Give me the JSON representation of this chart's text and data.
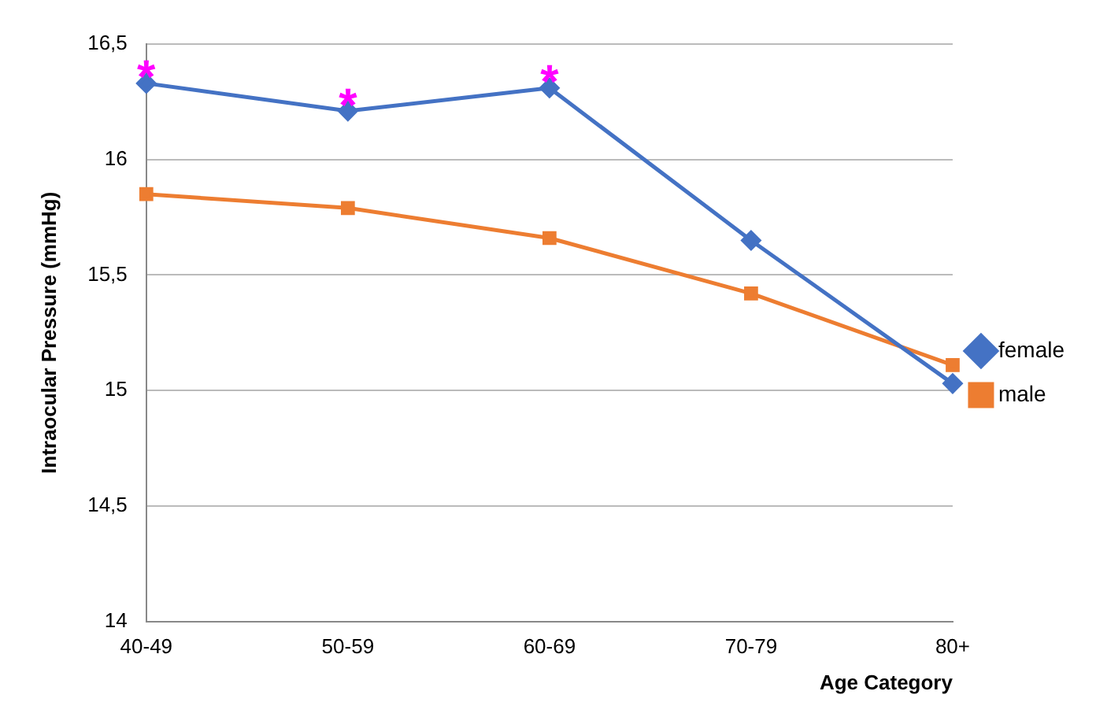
{
  "chart_data": {
    "type": "line",
    "xlabel": "Age Category",
    "ylabel": "Intraocular Pressure (mmHg)",
    "categories": [
      "40-49",
      "50-59",
      "60-69",
      "70-79",
      "80+"
    ],
    "series": [
      {
        "name": "female",
        "color": "#4472c4",
        "marker": "diamond",
        "values": [
          16.33,
          16.21,
          16.31,
          15.65,
          15.03
        ]
      },
      {
        "name": "male",
        "color": "#ed7d31",
        "marker": "square",
        "values": [
          15.85,
          15.79,
          15.66,
          15.42,
          15.11
        ]
      }
    ],
    "ylim": [
      14,
      16.5
    ],
    "yticks": [
      14,
      {
        "value": 14.5,
        "label": "14,5"
      },
      15,
      {
        "value": 15.5,
        "label": "15,5"
      },
      16,
      {
        "value": 16.5,
        "label": "16,5"
      }
    ],
    "grid": "y",
    "legend": "right",
    "annotations": [
      {
        "text": "*",
        "x": "40-49",
        "y": 16.33
      },
      {
        "text": "*",
        "x": "50-59",
        "y": 16.21
      },
      {
        "text": "*",
        "x": "60-69",
        "y": 16.31
      }
    ]
  }
}
